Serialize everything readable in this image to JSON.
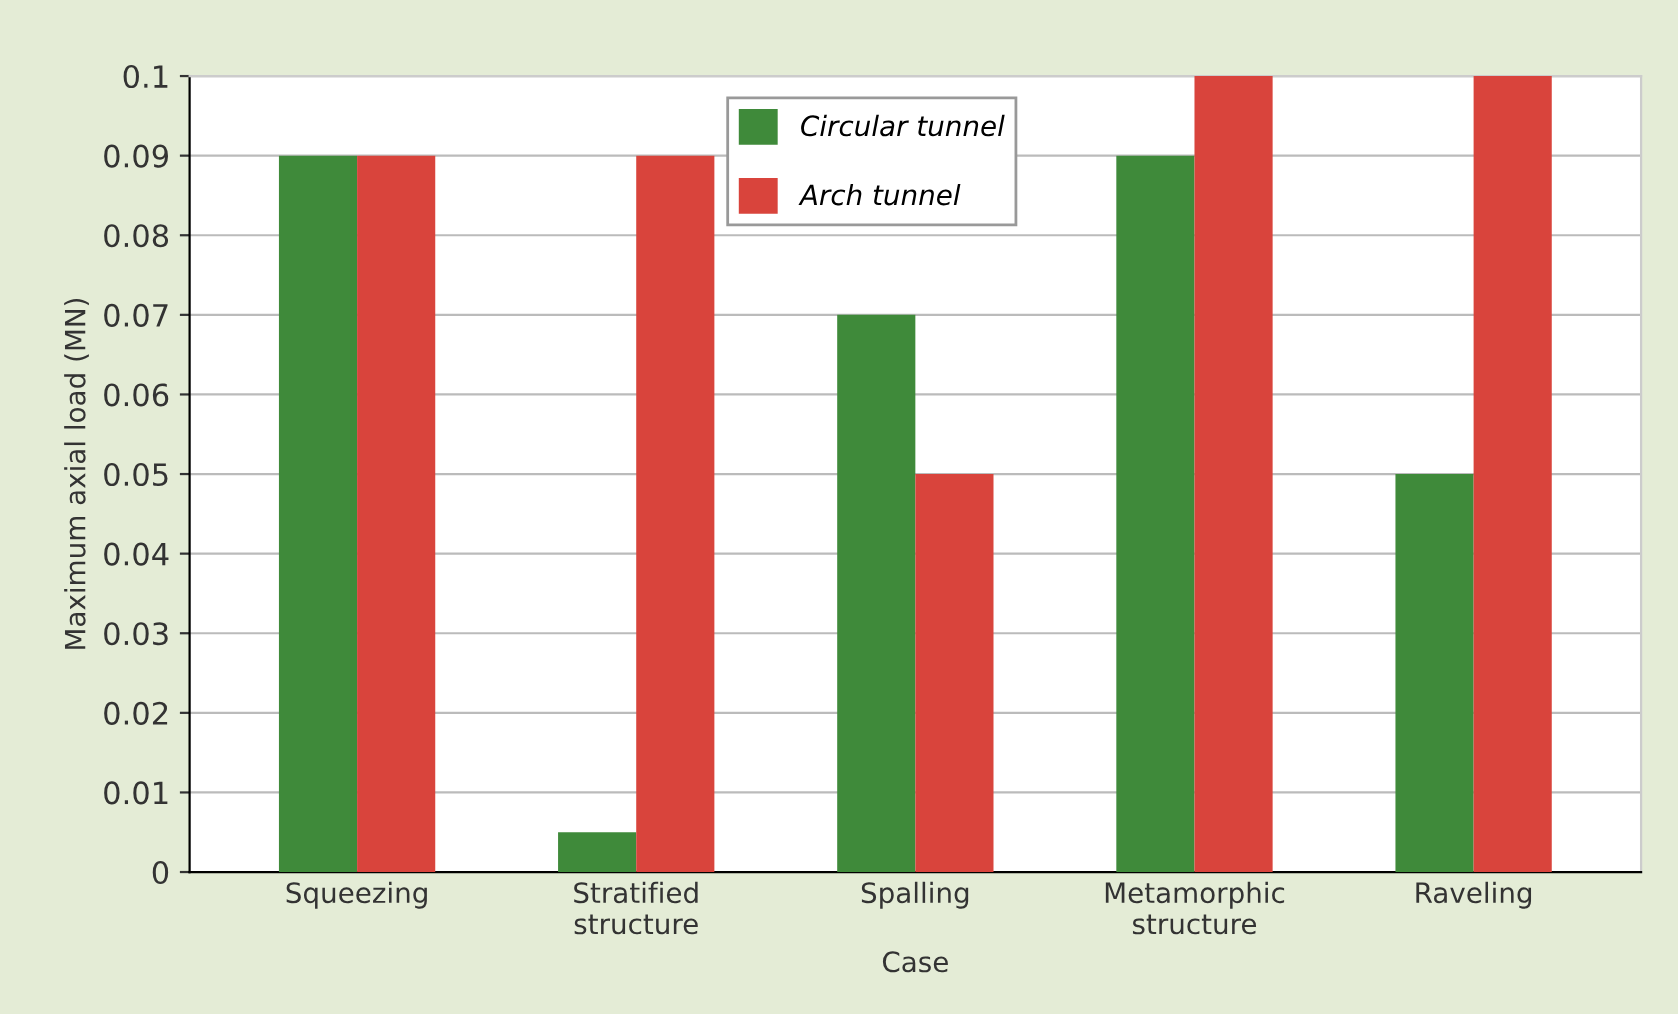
{
  "chart_data": {
    "type": "bar",
    "xlabel": "Case",
    "ylabel": "Maximum axial load (MN)",
    "categories": [
      "Squeezing",
      "Stratified\nstructure",
      "Spalling",
      "Metamorphic\nstructure",
      "Raveling"
    ],
    "series": [
      {
        "name": "Circular tunnel",
        "color": "#3f8a3a",
        "values": [
          0.09,
          0.005,
          0.07,
          0.09,
          0.05
        ]
      },
      {
        "name": "Arch tunnel",
        "color": "#d9443c",
        "values": [
          0.09,
          0.09,
          0.05,
          0.1,
          0.1
        ]
      }
    ],
    "ylim": [
      0,
      0.1
    ],
    "yticks": [
      0,
      0.01,
      0.02,
      0.03,
      0.04,
      0.05,
      0.06,
      0.07,
      0.08,
      0.09,
      0.1
    ],
    "grid": "y",
    "legend": "top"
  }
}
